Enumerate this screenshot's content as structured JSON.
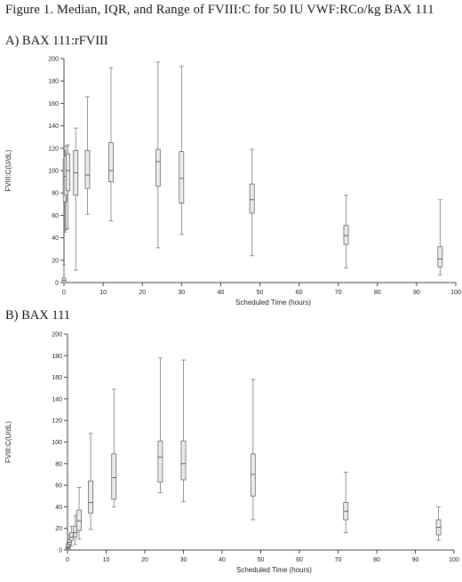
{
  "figure": {
    "title": "Figure 1. Median, IQR, and Range of FVIII:C for 50 IU VWF:RCo/kg BAX 111"
  },
  "chart_data": [
    {
      "type": "boxplot",
      "panel_title": "A) BAX 111:rFVIII",
      "xlabel": "Scheduled Time (hours)",
      "ylabel": "FVIII:C(U/dL)",
      "xlim": [
        0,
        100
      ],
      "ylim": [
        0,
        200
      ],
      "xticks": [
        0,
        10,
        20,
        30,
        40,
        50,
        60,
        70,
        80,
        90,
        100
      ],
      "yticks": [
        0,
        20,
        40,
        60,
        80,
        100,
        120,
        140,
        160,
        180,
        200
      ],
      "grid": false,
      "boxes": [
        {
          "x": 0,
          "min": 0,
          "q1": 0,
          "median": 2,
          "q3": 4,
          "max": 16
        },
        {
          "x": 0.25,
          "min": 45,
          "q1": 72,
          "median": 88,
          "q3": 110,
          "max": 118
        },
        {
          "x": 0.5,
          "min": 47,
          "q1": 78,
          "median": 95,
          "q3": 113,
          "max": 122
        },
        {
          "x": 1,
          "min": 48,
          "q1": 82,
          "median": 100,
          "q3": 115,
          "max": 123
        },
        {
          "x": 3,
          "min": 11,
          "q1": 78,
          "median": 98,
          "q3": 118,
          "max": 138
        },
        {
          "x": 6,
          "min": 61,
          "q1": 84,
          "median": 96,
          "q3": 118,
          "max": 166
        },
        {
          "x": 12,
          "min": 55,
          "q1": 90,
          "median": 100,
          "q3": 125,
          "max": 192
        },
        {
          "x": 24,
          "min": 31,
          "q1": 86,
          "median": 108,
          "q3": 119,
          "max": 197
        },
        {
          "x": 30,
          "min": 43,
          "q1": 71,
          "median": 93,
          "q3": 117,
          "max": 193
        },
        {
          "x": 48,
          "min": 24,
          "q1": 62,
          "median": 74,
          "q3": 88,
          "max": 119
        },
        {
          "x": 72,
          "min": 13,
          "q1": 34,
          "median": 42,
          "q3": 51,
          "max": 78
        },
        {
          "x": 96,
          "min": 7,
          "q1": 14,
          "median": 21,
          "q3": 32,
          "max": 74
        }
      ]
    },
    {
      "type": "boxplot",
      "panel_title": "B) BAX 111",
      "xlabel": "Scheduled Time (hours)",
      "ylabel": "FVIII:C(U/dL)",
      "xlim": [
        0,
        100
      ],
      "ylim": [
        0,
        200
      ],
      "xticks": [
        0,
        10,
        20,
        30,
        40,
        50,
        60,
        70,
        80,
        90,
        100
      ],
      "yticks": [
        0,
        20,
        40,
        60,
        80,
        100,
        120,
        140,
        160,
        180,
        200
      ],
      "grid": false,
      "boxes": [
        {
          "x": 0,
          "min": 0,
          "q1": 1,
          "median": 2,
          "q3": 3,
          "max": 5
        },
        {
          "x": 0.25,
          "min": 1,
          "q1": 3,
          "median": 5,
          "q3": 7,
          "max": 9
        },
        {
          "x": 0.5,
          "min": 2,
          "q1": 5,
          "median": 7,
          "q3": 10,
          "max": 14
        },
        {
          "x": 1,
          "min": 4,
          "q1": 9,
          "median": 12,
          "q3": 16,
          "max": 22
        },
        {
          "x": 2,
          "min": 5,
          "q1": 12,
          "median": 16,
          "q3": 22,
          "max": 32
        },
        {
          "x": 3,
          "min": 10,
          "q1": 18,
          "median": 27,
          "q3": 37,
          "max": 58
        },
        {
          "x": 6,
          "min": 19,
          "q1": 34,
          "median": 44,
          "q3": 64,
          "max": 108
        },
        {
          "x": 12,
          "min": 40,
          "q1": 47,
          "median": 67,
          "q3": 89,
          "max": 149
        },
        {
          "x": 24,
          "min": 53,
          "q1": 63,
          "median": 86,
          "q3": 101,
          "max": 178
        },
        {
          "x": 30,
          "min": 45,
          "q1": 65,
          "median": 80,
          "q3": 101,
          "max": 176
        },
        {
          "x": 48,
          "min": 28,
          "q1": 50,
          "median": 70,
          "q3": 89,
          "max": 158
        },
        {
          "x": 72,
          "min": 16,
          "q1": 28,
          "median": 36,
          "q3": 44,
          "max": 72
        },
        {
          "x": 96,
          "min": 9,
          "q1": 14,
          "median": 21,
          "q3": 28,
          "max": 40
        }
      ]
    }
  ]
}
